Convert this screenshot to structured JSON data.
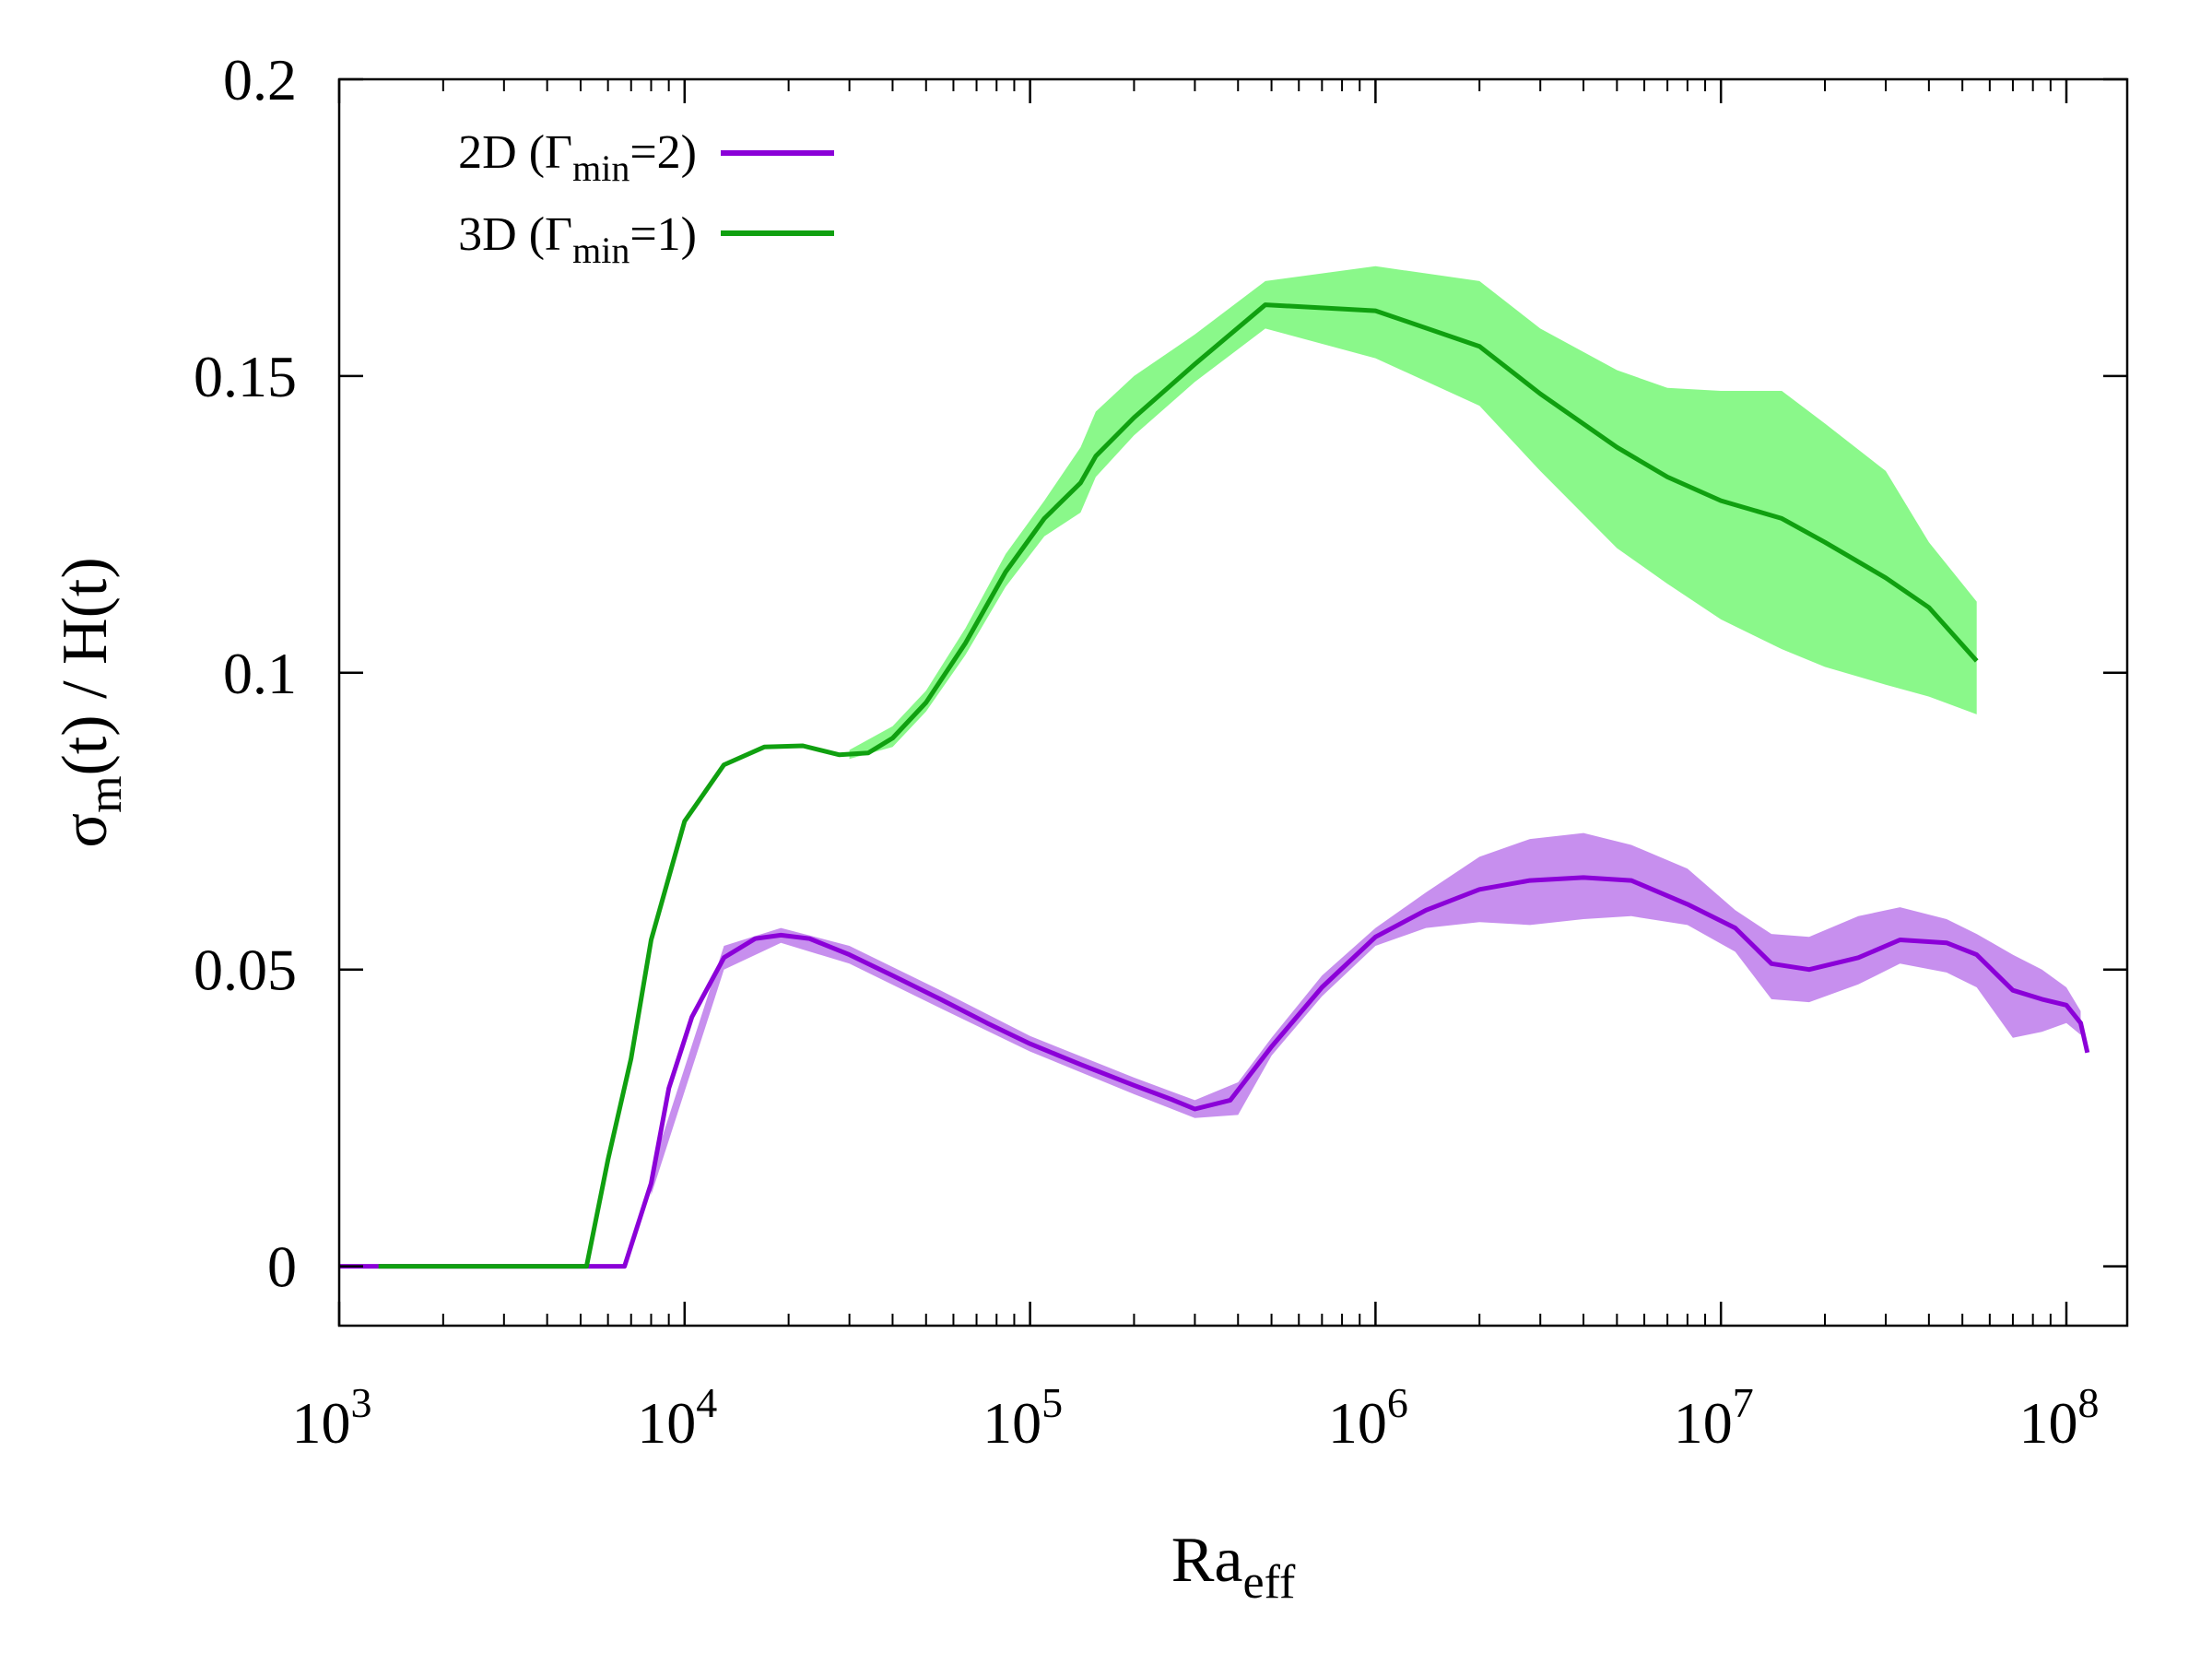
{
  "chart_data": {
    "type": "line",
    "title": "",
    "xlabel": {
      "main": "Ra",
      "sub": "eff"
    },
    "ylabel": {
      "prefix": "σ",
      "sub": "m",
      "suffix": "(t) / H(t)"
    },
    "xscale": "log",
    "xlim": [
      1000,
      150000000
    ],
    "ylim": [
      -0.01,
      0.2
    ],
    "grid": false,
    "legend_position": "top-left",
    "x_ticks": [
      {
        "value": 1000,
        "base": "10",
        "exp": "3"
      },
      {
        "value": 10000,
        "base": "10",
        "exp": "4"
      },
      {
        "value": 100000,
        "base": "10",
        "exp": "5"
      },
      {
        "value": 1000000,
        "base": "10",
        "exp": "6"
      },
      {
        "value": 10000000,
        "base": "10",
        "exp": "7"
      },
      {
        "value": 100000000,
        "base": "10",
        "exp": "8"
      }
    ],
    "y_ticks": [
      {
        "value": 0,
        "label": "0"
      },
      {
        "value": 0.05,
        "label": "0.05"
      },
      {
        "value": 0.1,
        "label": "0.1"
      },
      {
        "value": 0.15,
        "label": "0.15"
      },
      {
        "value": 0.2,
        "label": "0.2"
      }
    ],
    "series": [
      {
        "name": "2D",
        "legend": {
          "pre": "2D (Γ",
          "sub": "min",
          "post": "=2)"
        },
        "color": "#8B00D8",
        "band_color": "#C78FEE",
        "points": [
          [
            1000,
            0
          ],
          [
            2000,
            0
          ],
          [
            4000,
            0
          ],
          [
            6700,
            0
          ],
          [
            8000,
            0.014
          ],
          [
            9000,
            0.03
          ],
          [
            10500,
            0.042
          ],
          [
            13000,
            0.052
          ],
          [
            16000,
            0.0552
          ],
          [
            19000,
            0.0558
          ],
          [
            23000,
            0.0552
          ],
          [
            30000,
            0.0525
          ],
          [
            40000,
            0.049
          ],
          [
            55000,
            0.045
          ],
          [
            75000,
            0.041
          ],
          [
            100000,
            0.0375
          ],
          [
            140000,
            0.034
          ],
          [
            200000,
            0.0305
          ],
          [
            260000,
            0.028
          ],
          [
            300000,
            0.0265
          ],
          [
            380000,
            0.028
          ],
          [
            500000,
            0.037
          ],
          [
            700000,
            0.047
          ],
          [
            1000000,
            0.0555
          ],
          [
            1400000,
            0.06
          ],
          [
            2000000,
            0.0635
          ],
          [
            2800000,
            0.065
          ],
          [
            4000000,
            0.0655
          ],
          [
            5500000,
            0.065
          ],
          [
            8000000,
            0.061
          ],
          [
            11000000,
            0.057
          ],
          [
            14000000,
            0.051
          ],
          [
            18000000,
            0.05
          ],
          [
            25000000,
            0.052
          ],
          [
            33000000,
            0.055
          ],
          [
            45000000,
            0.0545
          ],
          [
            55000000,
            0.0525
          ],
          [
            70000000,
            0.0465
          ],
          [
            85000000,
            0.045
          ],
          [
            100000000,
            0.044
          ],
          [
            110000000,
            0.041
          ],
          [
            115000000,
            0.036
          ]
        ],
        "band": [
          [
            8000,
            0.012,
            0.016
          ],
          [
            13000,
            0.05,
            0.054
          ],
          [
            19000,
            0.0545,
            0.057
          ],
          [
            30000,
            0.051,
            0.054
          ],
          [
            55000,
            0.0435,
            0.0465
          ],
          [
            100000,
            0.0362,
            0.0388
          ],
          [
            200000,
            0.029,
            0.0318
          ],
          [
            300000,
            0.025,
            0.028
          ],
          [
            400000,
            0.0255,
            0.031
          ],
          [
            500000,
            0.0355,
            0.0385
          ],
          [
            700000,
            0.0455,
            0.049
          ],
          [
            1000000,
            0.054,
            0.057
          ],
          [
            1400000,
            0.057,
            0.063
          ],
          [
            2000000,
            0.058,
            0.069
          ],
          [
            2800000,
            0.0575,
            0.072
          ],
          [
            4000000,
            0.0585,
            0.073
          ],
          [
            5500000,
            0.059,
            0.071
          ],
          [
            8000000,
            0.0575,
            0.067
          ],
          [
            11000000,
            0.053,
            0.06
          ],
          [
            14000000,
            0.045,
            0.056
          ],
          [
            18000000,
            0.0445,
            0.0555
          ],
          [
            25000000,
            0.0475,
            0.059
          ],
          [
            33000000,
            0.051,
            0.0605
          ],
          [
            45000000,
            0.0495,
            0.0585
          ],
          [
            55000000,
            0.047,
            0.056
          ],
          [
            70000000,
            0.0385,
            0.0525
          ],
          [
            85000000,
            0.0395,
            0.05
          ],
          [
            100000000,
            0.041,
            0.047
          ],
          [
            110000000,
            0.039,
            0.043
          ]
        ]
      },
      {
        "name": "3D",
        "legend": {
          "pre": "3D (Γ",
          "sub": "min",
          "post": "=1)"
        },
        "color": "#10A010",
        "band_color": "#8AF88A",
        "points": [
          [
            1300,
            0
          ],
          [
            3000,
            0
          ],
          [
            5200,
            0
          ],
          [
            6000,
            0.018
          ],
          [
            7000,
            0.035
          ],
          [
            8000,
            0.055
          ],
          [
            10000,
            0.075
          ],
          [
            13000,
            0.0845
          ],
          [
            17000,
            0.0875
          ],
          [
            22000,
            0.0877
          ],
          [
            28000,
            0.0862
          ],
          [
            34000,
            0.0865
          ],
          [
            40000,
            0.089
          ],
          [
            50000,
            0.095
          ],
          [
            65000,
            0.105
          ],
          [
            85000,
            0.117
          ],
          [
            110000,
            0.126
          ],
          [
            140000,
            0.132
          ],
          [
            155000,
            0.1365
          ],
          [
            200000,
            0.143
          ],
          [
            300000,
            0.152
          ],
          [
            480000,
            0.162
          ],
          [
            1000000,
            0.161
          ],
          [
            2000000,
            0.155
          ],
          [
            3000000,
            0.147
          ],
          [
            5000000,
            0.138
          ],
          [
            7000000,
            0.133
          ],
          [
            10000000,
            0.129
          ],
          [
            15000000,
            0.126
          ],
          [
            20000000,
            0.122
          ],
          [
            30000000,
            0.116
          ],
          [
            40000000,
            0.111
          ],
          [
            55000000,
            0.102
          ]
        ],
        "band": [
          [
            30000,
            0.0855,
            0.087
          ],
          [
            40000,
            0.0875,
            0.091
          ],
          [
            50000,
            0.0935,
            0.097
          ],
          [
            65000,
            0.103,
            0.1075
          ],
          [
            85000,
            0.1145,
            0.12
          ],
          [
            110000,
            0.123,
            0.129
          ],
          [
            140000,
            0.127,
            0.138
          ],
          [
            155000,
            0.133,
            0.144
          ],
          [
            200000,
            0.14,
            0.15
          ],
          [
            300000,
            0.149,
            0.157
          ],
          [
            480000,
            0.158,
            0.166
          ],
          [
            1000000,
            0.153,
            0.1685
          ],
          [
            2000000,
            0.145,
            0.166
          ],
          [
            3000000,
            0.134,
            0.158
          ],
          [
            5000000,
            0.121,
            0.151
          ],
          [
            7000000,
            0.115,
            0.148
          ],
          [
            10000000,
            0.109,
            0.1475
          ],
          [
            15000000,
            0.104,
            0.1475
          ],
          [
            20000000,
            0.101,
            0.142
          ],
          [
            30000000,
            0.098,
            0.134
          ],
          [
            40000000,
            0.096,
            0.122
          ],
          [
            55000000,
            0.093,
            0.112
          ]
        ]
      }
    ]
  }
}
